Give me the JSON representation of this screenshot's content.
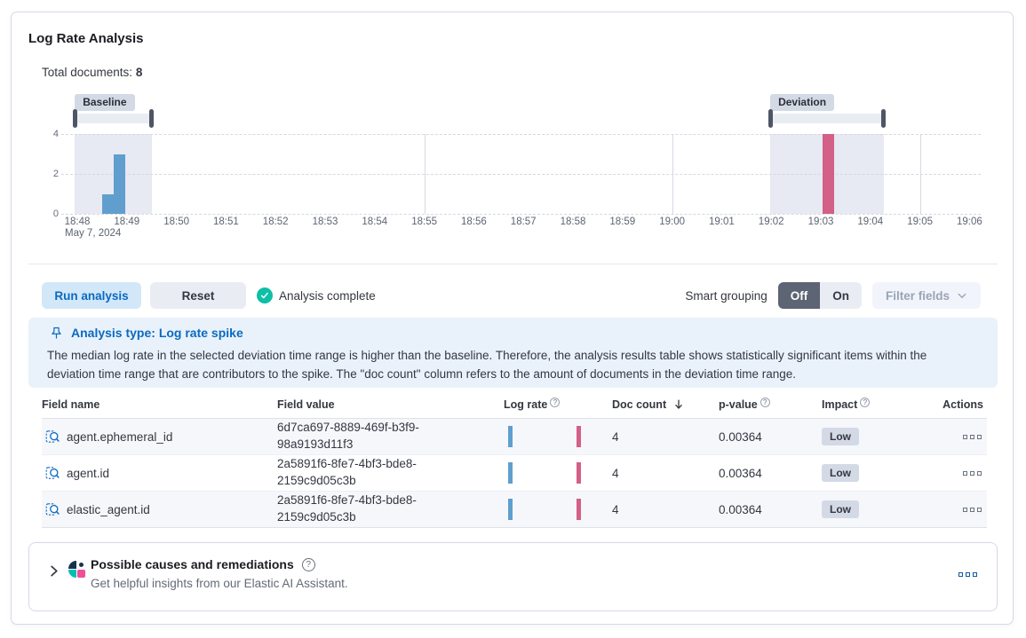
{
  "card": {
    "title": "Log Rate Analysis"
  },
  "summary": {
    "label": "Total documents: ",
    "count": "8"
  },
  "chart_data": {
    "type": "bar",
    "title": "document count histogram",
    "x_axis": {
      "tick_labels": [
        "18:48",
        "18:49",
        "18:50",
        "18:51",
        "18:52",
        "18:53",
        "18:54",
        "18:55",
        "18:56",
        "18:57",
        "18:58",
        "18:59",
        "19:00",
        "19:01",
        "19:02",
        "19:03",
        "19:04",
        "19:05",
        "19:06"
      ],
      "date_label": "May 7, 2024",
      "gridline_tick_indexes": [
        7,
        12,
        17
      ]
    },
    "y_axis": {
      "ticks": [
        0,
        2,
        4
      ],
      "max": 4
    },
    "series": [
      {
        "name": "baseline",
        "color": "#609ECE",
        "bars": [
          {
            "start_min": 0.5,
            "width_min": 0.233,
            "value": 1
          },
          {
            "start_min": 0.74,
            "width_min": 0.233,
            "value": 3
          }
        ]
      },
      {
        "name": "deviation",
        "color": "#D36086",
        "bars": [
          {
            "start_min": 15.04,
            "width_min": 0.233,
            "value": 4
          }
        ]
      }
    ],
    "brushes": [
      {
        "label": "Baseline",
        "from_min": -0.05,
        "to_min": 1.5
      },
      {
        "label": "Deviation",
        "from_min": 13.98,
        "to_min": 16.27
      }
    ]
  },
  "toolbar": {
    "run_label": "Run analysis",
    "reset_label": "Reset",
    "status_label": "Analysis complete",
    "smart_grouping_label": "Smart grouping",
    "off_label": "Off",
    "on_label": "On",
    "filter_fields_label": "Filter fields"
  },
  "callout": {
    "title": "Analysis type: Log rate spike",
    "body": "The median log rate in the selected deviation time range is higher than the baseline. Therefore, the analysis results table shows statistically significant items within the deviation time range that are contributors to the spike. The \"doc count\" column refers to the amount of documents in the deviation time range."
  },
  "results_table": {
    "columns": [
      {
        "label": "Field name"
      },
      {
        "label": "Field value"
      },
      {
        "label": "Log rate",
        "help": true
      },
      {
        "label": "Doc count",
        "sorted": "desc"
      },
      {
        "label": "p-value",
        "help": true
      },
      {
        "label": "Impact",
        "help": true
      },
      {
        "label": "Actions"
      }
    ],
    "rows": [
      {
        "field_name": "agent.ephemeral_id",
        "field_value": "6d7ca697-8889-469f-b3f9-98a9193d11f3",
        "doc_count": "4",
        "p_value": "0.00364",
        "impact": "Low"
      },
      {
        "field_name": "agent.id",
        "field_value": "2a5891f6-8fe7-4bf3-bde8-2159c9d05c3b",
        "doc_count": "4",
        "p_value": "0.00364",
        "impact": "Low"
      },
      {
        "field_name": "elastic_agent.id",
        "field_value": "2a5891f6-8fe7-4bf3-bde8-2159c9d05c3b",
        "doc_count": "4",
        "p_value": "0.00364",
        "impact": "Low"
      }
    ]
  },
  "ai_panel": {
    "title": "Possible causes and remediations",
    "subtitle": "Get helpful insights from our Elastic AI Assistant."
  },
  "colors": {
    "accent_blue": "#0b6ac0",
    "baseline_bar": "#609ECE",
    "deviation_bar": "#D36086",
    "selection_fill": "#e7e9f3",
    "success_green": "#0dbfa6",
    "badge_gray": "#d3dae6"
  }
}
